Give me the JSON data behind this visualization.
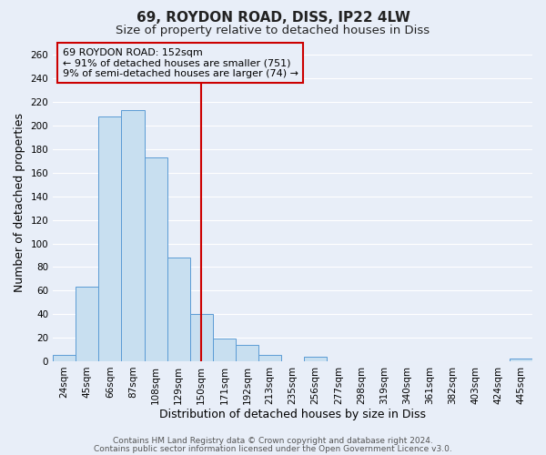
{
  "title": "69, ROYDON ROAD, DISS, IP22 4LW",
  "subtitle": "Size of property relative to detached houses in Diss",
  "xlabel": "Distribution of detached houses by size in Diss",
  "ylabel": "Number of detached properties",
  "bin_labels": [
    "24sqm",
    "45sqm",
    "66sqm",
    "87sqm",
    "108sqm",
    "129sqm",
    "150sqm",
    "171sqm",
    "192sqm",
    "213sqm",
    "235sqm",
    "256sqm",
    "277sqm",
    "298sqm",
    "319sqm",
    "340sqm",
    "361sqm",
    "382sqm",
    "403sqm",
    "424sqm",
    "445sqm"
  ],
  "bar_heights": [
    5,
    63,
    208,
    213,
    173,
    88,
    40,
    19,
    14,
    5,
    0,
    4,
    0,
    0,
    0,
    0,
    0,
    0,
    0,
    0,
    2
  ],
  "bar_color": "#c8dff0",
  "bar_edgecolor": "#5b9bd5",
  "vline_x": 6,
  "vline_color": "#cc0000",
  "annotation_title": "69 ROYDON ROAD: 152sqm",
  "annotation_line1": "← 91% of detached houses are smaller (751)",
  "annotation_line2": "9% of semi-detached houses are larger (74) →",
  "annotation_box_edgecolor": "#cc0000",
  "ylim": [
    0,
    270
  ],
  "yticks": [
    0,
    20,
    40,
    60,
    80,
    100,
    120,
    140,
    160,
    180,
    200,
    220,
    240,
    260
  ],
  "footer1": "Contains HM Land Registry data © Crown copyright and database right 2024.",
  "footer2": "Contains public sector information licensed under the Open Government Licence v3.0.",
  "bg_color": "#e8eef8",
  "grid_color": "#ffffff",
  "title_fontsize": 11,
  "subtitle_fontsize": 9.5,
  "axis_label_fontsize": 9,
  "tick_fontsize": 7.5,
  "annotation_fontsize": 8,
  "footer_fontsize": 6.5
}
